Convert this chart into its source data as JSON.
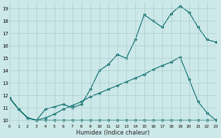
{
  "xlabel": "Humidex (Indice chaleur)",
  "bg_color": "#cce8e8",
  "grid_color": "#aacccc",
  "line_color": "#006666",
  "xlim": [
    0,
    23
  ],
  "ylim": [
    9.7,
    19.5
  ],
  "xticks": [
    0,
    1,
    2,
    3,
    4,
    5,
    6,
    7,
    8,
    9,
    10,
    11,
    12,
    13,
    14,
    15,
    16,
    17,
    18,
    19,
    20,
    21,
    22,
    23
  ],
  "yticks": [
    10,
    11,
    12,
    13,
    14,
    15,
    16,
    17,
    18,
    19
  ],
  "line1_x": [
    0,
    1,
    2,
    3,
    4,
    5,
    6,
    7,
    8,
    9,
    10,
    11,
    12,
    13,
    14,
    15,
    16,
    17,
    18,
    19,
    20,
    21,
    22,
    23
  ],
  "line1_y": [
    11.8,
    10.9,
    10.2,
    10.0,
    10.9,
    11.1,
    11.3,
    11.0,
    11.3,
    12.5,
    14.0,
    14.5,
    15.3,
    15.0,
    16.5,
    18.5,
    18.0,
    17.5,
    18.6,
    19.2,
    18.7,
    17.5,
    16.5,
    16.3
  ],
  "line2_x": [
    0,
    1,
    2,
    3,
    4,
    5,
    6,
    7,
    8,
    9,
    10,
    11,
    12,
    13,
    14,
    15,
    16,
    17,
    18,
    19,
    20,
    21,
    22,
    23
  ],
  "line2_y": [
    11.8,
    10.9,
    10.2,
    10.0,
    10.2,
    10.5,
    10.9,
    11.2,
    11.5,
    11.9,
    12.2,
    12.5,
    12.8,
    13.1,
    13.4,
    13.7,
    14.1,
    14.4,
    14.7,
    15.1,
    13.3,
    11.5,
    10.6,
    10.0
  ],
  "line3_x": [
    0,
    1,
    2,
    3,
    4,
    5,
    6,
    7,
    8,
    9,
    10,
    11,
    12,
    13,
    14,
    15,
    16,
    17,
    18,
    19,
    20,
    21,
    22,
    23
  ],
  "line3_y": [
    11.8,
    10.9,
    10.2,
    10.0,
    10.0,
    10.0,
    10.0,
    10.0,
    10.0,
    10.0,
    10.0,
    10.0,
    10.0,
    10.0,
    10.0,
    10.0,
    10.0,
    10.0,
    10.0,
    10.0,
    10.0,
    10.0,
    10.0,
    10.0
  ]
}
